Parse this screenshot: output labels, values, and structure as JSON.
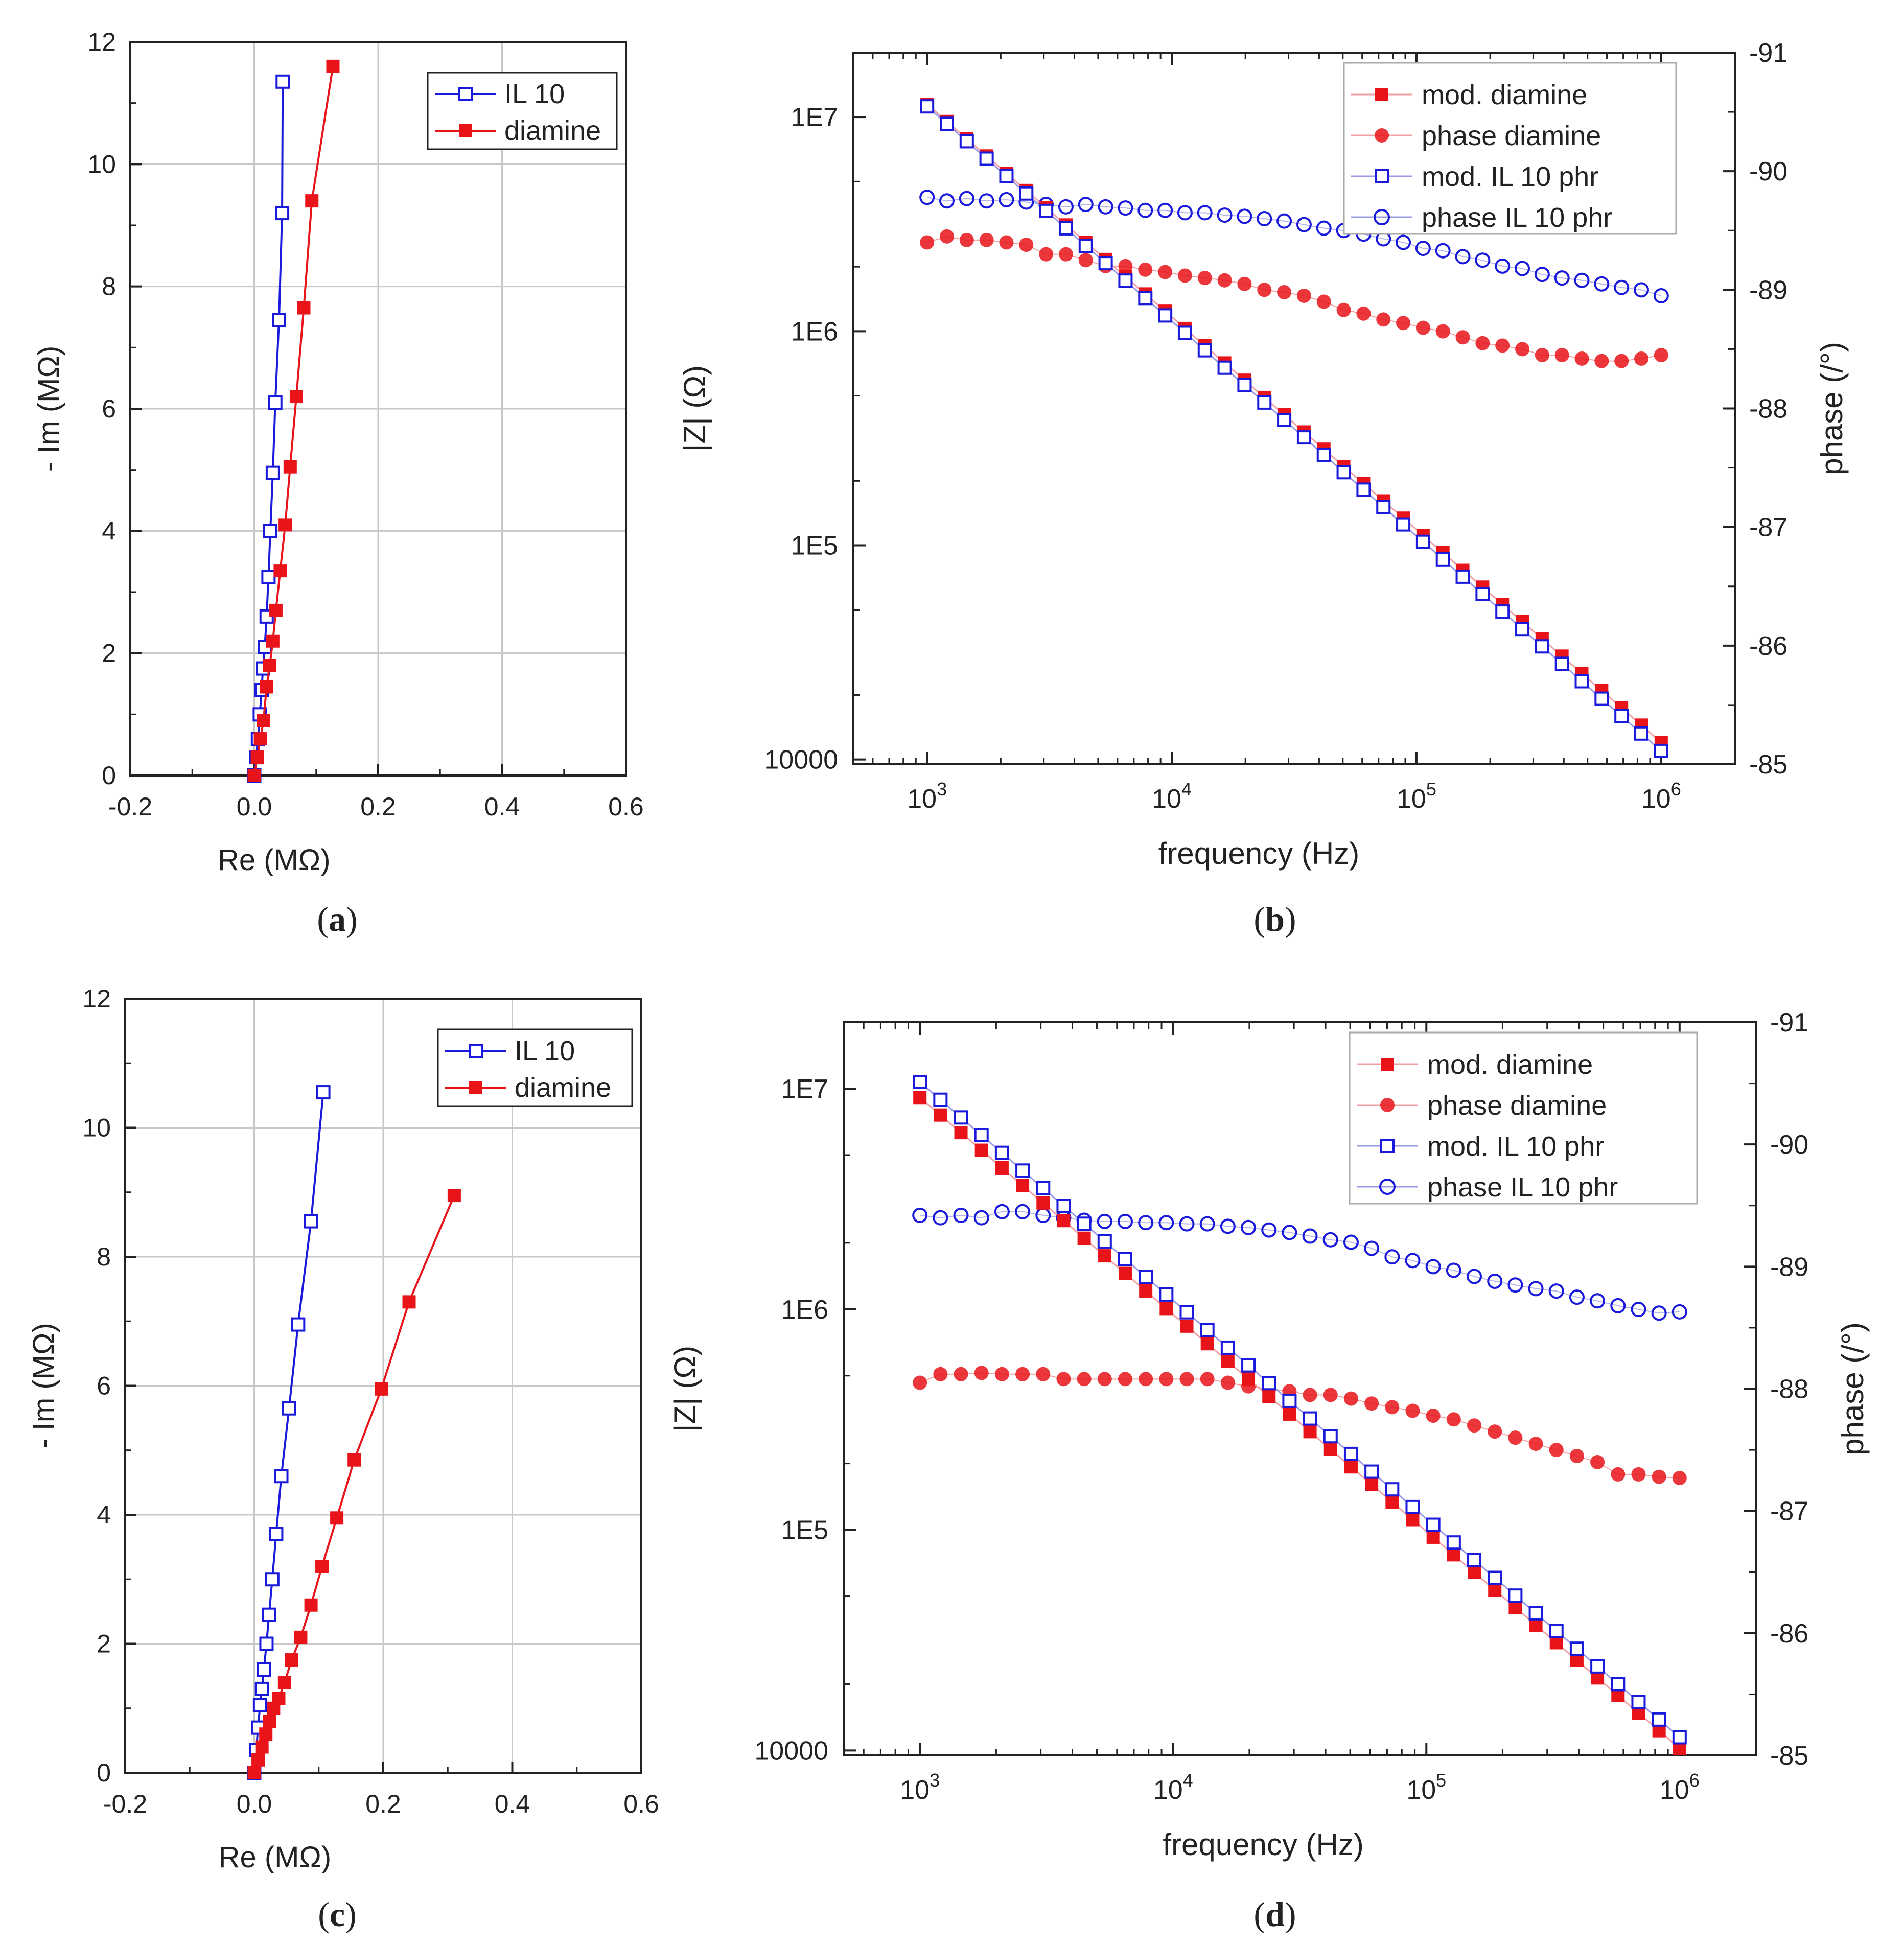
{
  "chart_data": [
    {
      "panel": "a",
      "caption_letter": "a",
      "type": "scatter",
      "xlabel": "Re (MΩ)",
      "ylabel": "- Im (MΩ)",
      "xlim": [
        -0.2,
        0.6
      ],
      "ylim": [
        0,
        12
      ],
      "xticks": [
        "-0.2",
        "0.0",
        "0.2",
        "0.4",
        "0.6"
      ],
      "yticks": [
        "0",
        "2",
        "4",
        "6",
        "8",
        "10",
        "12"
      ],
      "grid": true,
      "legend_position": "top-right",
      "series": [
        {
          "name": "IL 10",
          "color": "#1a1adc",
          "marker": "open-square",
          "x": [
            0.0,
            0.003,
            0.006,
            0.009,
            0.012,
            0.014,
            0.017,
            0.02,
            0.023,
            0.026,
            0.03,
            0.034,
            0.04,
            0.045
          ],
          "y": [
            0.0,
            0.3,
            0.6,
            1.0,
            1.4,
            1.75,
            2.1,
            2.6,
            3.25,
            4.0,
            4.95,
            6.1,
            7.45,
            9.2
          ],
          "extra": [
            [
              0.046,
              11.35
            ]
          ]
        },
        {
          "name": "diamine",
          "color": "#e8141a",
          "marker": "filled-square",
          "x": [
            0.0,
            0.005,
            0.01,
            0.015,
            0.02,
            0.025,
            0.03,
            0.035,
            0.042,
            0.05,
            0.058,
            0.068,
            0.08,
            0.093,
            0.127
          ],
          "y": [
            0.0,
            0.3,
            0.6,
            0.9,
            1.45,
            1.8,
            2.2,
            2.7,
            3.35,
            4.1,
            5.05,
            6.2,
            7.65,
            9.4,
            11.6
          ]
        }
      ]
    },
    {
      "panel": "b",
      "caption_letter": "b",
      "type": "line",
      "xlabel": "frequency (Hz)",
      "ylabel": "|Z| (Ω)",
      "y2label": "phase (/°)",
      "xscale": "log",
      "yscale": "log",
      "xlim": [
        500,
        2000000
      ],
      "ylim": [
        9500,
        20000000
      ],
      "y2lim": [
        -85,
        -91
      ],
      "xticks": [
        {
          "base": "10",
          "exp": "3"
        },
        {
          "base": "10",
          "exp": "4"
        },
        {
          "base": "10",
          "exp": "5"
        },
        {
          "base": "10",
          "exp": "6"
        }
      ],
      "yticks": [
        "10000",
        "1E5",
        "1E6",
        "1E7"
      ],
      "y2ticks": [
        "-85",
        "-86",
        "-87",
        "-88",
        "-89",
        "-90",
        "-91"
      ],
      "legend_position": "top-right",
      "legend": [
        "mod. diamine",
        "phase diamine",
        "mod.  IL 10 phr",
        "phase IL 10 phr"
      ],
      "mod_diamine": {
        "start_log": 7.06,
        "end_log": 4.08
      },
      "mod_il10": {
        "start_log": 7.05,
        "end_log": 4.04
      },
      "phase_diamine": [
        -89.4,
        -89.45,
        -89.42,
        -89.42,
        -89.4,
        -89.38,
        -89.3,
        -89.3,
        -89.25,
        -89.2,
        -89.2,
        -89.17,
        -89.15,
        -89.12,
        -89.1,
        -89.08,
        -89.05,
        -89.0,
        -88.98,
        -88.95,
        -88.9,
        -88.83,
        -88.8,
        -88.75,
        -88.72,
        -88.68,
        -88.65,
        -88.6,
        -88.55,
        -88.53,
        -88.5,
        -88.45,
        -88.45,
        -88.42,
        -88.4,
        -88.4,
        -88.42,
        -88.45
      ],
      "phase_il10": [
        -89.78,
        -89.75,
        -89.77,
        -89.75,
        -89.76,
        -89.74,
        -89.72,
        -89.7,
        -89.72,
        -89.7,
        -89.69,
        -89.67,
        -89.67,
        -89.65,
        -89.65,
        -89.63,
        -89.62,
        -89.6,
        -89.58,
        -89.55,
        -89.52,
        -89.5,
        -89.47,
        -89.43,
        -89.4,
        -89.35,
        -89.33,
        -89.28,
        -89.25,
        -89.2,
        -89.18,
        -89.13,
        -89.1,
        -89.08,
        -89.05,
        -89.02,
        -89.0,
        -88.95
      ]
    },
    {
      "panel": "c",
      "caption_letter": "c",
      "type": "scatter",
      "xlabel": "Re (MΩ)",
      "ylabel": "- Im (MΩ)",
      "xlim": [
        -0.2,
        0.6
      ],
      "ylim": [
        0,
        12
      ],
      "xticks": [
        "-0.2",
        "0.0",
        "0.2",
        "0.4",
        "0.6"
      ],
      "yticks": [
        "0",
        "2",
        "4",
        "6",
        "8",
        "10",
        "12"
      ],
      "grid": true,
      "legend_position": "top-right",
      "series": [
        {
          "name": "IL 10",
          "color": "#1a1adc",
          "marker": "open-square",
          "x": [
            0.0,
            0.003,
            0.006,
            0.009,
            0.012,
            0.015,
            0.019,
            0.023,
            0.028,
            0.034,
            0.042,
            0.054,
            0.068,
            0.088,
            0.107
          ],
          "y": [
            0.0,
            0.35,
            0.7,
            1.05,
            1.3,
            1.6,
            2.0,
            2.45,
            3.0,
            3.7,
            4.6,
            5.65,
            6.95,
            8.55,
            10.55
          ]
        },
        {
          "name": "diamine",
          "color": "#e8141a",
          "marker": "filled-square",
          "x": [
            0.0,
            0.006,
            0.012,
            0.018,
            0.024,
            0.03,
            0.038,
            0.047,
            0.058,
            0.072,
            0.088,
            0.105,
            0.128,
            0.155,
            0.197,
            0.24,
            0.31
          ],
          "y": [
            0.0,
            0.2,
            0.4,
            0.6,
            0.8,
            1.0,
            1.15,
            1.4,
            1.75,
            2.1,
            2.6,
            3.2,
            3.95,
            4.85,
            5.95,
            7.3,
            8.95
          ]
        }
      ]
    },
    {
      "panel": "d",
      "caption_letter": "d",
      "type": "line",
      "xlabel": "frequency (Hz)",
      "ylabel": "|Z| (Ω)",
      "y2label": "phase (/°)",
      "xscale": "log",
      "yscale": "log",
      "xlim": [
        500,
        2000000
      ],
      "ylim": [
        9500,
        20000000
      ],
      "y2lim": [
        -85,
        -91
      ],
      "xticks": [
        {
          "base": "10",
          "exp": "3"
        },
        {
          "base": "10",
          "exp": "4"
        },
        {
          "base": "10",
          "exp": "5"
        },
        {
          "base": "10",
          "exp": "6"
        }
      ],
      "yticks": [
        "10000",
        "1E5",
        "1E6",
        "1E7"
      ],
      "y2ticks": [
        "-85",
        "-86",
        "-87",
        "-88",
        "-89",
        "-90",
        "-91"
      ],
      "legend_position": "top-right",
      "legend": [
        "mod. diamine",
        "phase diamine",
        "mod. IL 10 phr",
        "phase  IL 10 phr"
      ],
      "mod_diamine": {
        "start_log": 6.96,
        "end_log": 4.01
      },
      "mod_il10": {
        "start_log": 7.03,
        "end_log": 4.06
      },
      "phase_diamine": [
        -88.05,
        -88.12,
        -88.12,
        -88.13,
        -88.12,
        -88.12,
        -88.12,
        -88.08,
        -88.08,
        -88.08,
        -88.08,
        -88.08,
        -88.08,
        -88.08,
        -88.08,
        -88.05,
        -88.02,
        -88.0,
        -87.98,
        -87.95,
        -87.95,
        -87.92,
        -87.88,
        -87.85,
        -87.82,
        -87.78,
        -87.75,
        -87.7,
        -87.65,
        -87.6,
        -87.55,
        -87.5,
        -87.45,
        -87.4,
        -87.3,
        -87.3,
        -87.28,
        -87.27
      ],
      "phase_il10": [
        -89.42,
        -89.4,
        -89.42,
        -89.4,
        -89.45,
        -89.45,
        -89.42,
        -89.4,
        -89.38,
        -89.37,
        -89.37,
        -89.36,
        -89.36,
        -89.35,
        -89.35,
        -89.33,
        -89.32,
        -89.3,
        -89.28,
        -89.25,
        -89.22,
        -89.2,
        -89.15,
        -89.08,
        -89.05,
        -89.0,
        -88.97,
        -88.92,
        -88.88,
        -88.85,
        -88.82,
        -88.8,
        -88.75,
        -88.72,
        -88.68,
        -88.65,
        -88.62,
        -88.63
      ]
    }
  ]
}
